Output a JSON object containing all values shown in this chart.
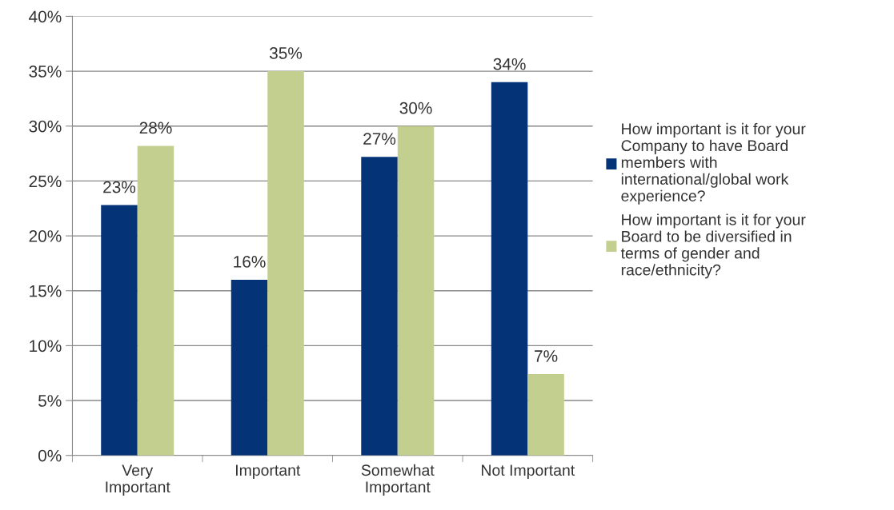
{
  "chart_data": {
    "type": "bar",
    "categories": [
      "Very\nImportant",
      "Important",
      "Somewhat\nImportant",
      "Not Important"
    ],
    "series": [
      {
        "name": "How important is it for your\nCompany to have Board\nmembers with\ninternational/global work\nexperience?",
        "color": "#043378",
        "values": [
          22.8,
          16,
          27.2,
          34
        ],
        "value_labels": [
          "23%",
          "16%",
          "27%",
          "34%"
        ]
      },
      {
        "name": "How important is it for your\nBoard to be diversified in\nterms of gender and\nrace/ethnicity?",
        "color": "#c3cf8f",
        "values": [
          28.2,
          35,
          30,
          7.4
        ],
        "value_labels": [
          "28%",
          "35%",
          "30%",
          "7%"
        ]
      }
    ],
    "ylim": [
      0,
      40
    ],
    "yticks": [
      {
        "value": 0,
        "label": "0%"
      },
      {
        "value": 5,
        "label": "5%"
      },
      {
        "value": 10,
        "label": "10%"
      },
      {
        "value": 15,
        "label": "15%"
      },
      {
        "value": 20,
        "label": "20%"
      },
      {
        "value": 25,
        "label": "25%"
      },
      {
        "value": 30,
        "label": "30%"
      },
      {
        "value": 35,
        "label": "35%"
      },
      {
        "value": 40,
        "label": "40%"
      }
    ],
    "grid": "y",
    "legend": "right"
  }
}
